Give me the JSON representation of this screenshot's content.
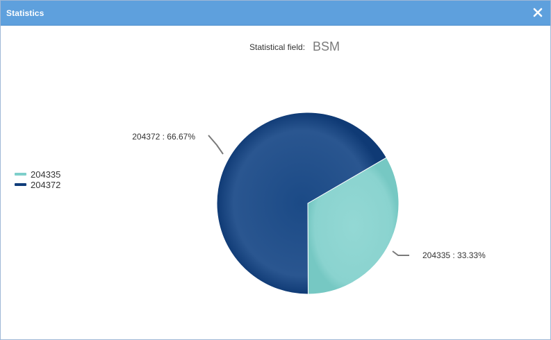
{
  "window": {
    "title": "Statistics",
    "close_icon": "close-icon"
  },
  "header": {
    "field_label": "Statistical field:",
    "field_value": "BSM"
  },
  "legend": {
    "placement": "left",
    "items": [
      {
        "label": "204335",
        "color": "#7ecfcb"
      },
      {
        "label": "204372",
        "color": "#0f3c7a"
      }
    ]
  },
  "chart_data": {
    "type": "pie",
    "categories": [
      "204335",
      "204372"
    ],
    "values": [
      33.33,
      66.67
    ],
    "colors": [
      "#8ed6d2",
      "#123f7c"
    ],
    "labels": [
      "204335 : 33.33%",
      "204372 : 66.67%"
    ],
    "start_angle_deg": 0,
    "direction": "clockwise"
  }
}
